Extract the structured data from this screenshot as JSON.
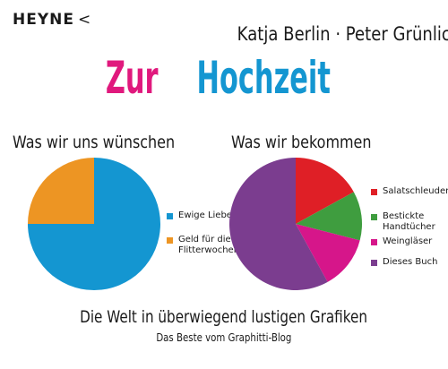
{
  "cover": {
    "publisher": "HEYNE",
    "publisher_mark": "<",
    "authors": "Katja Berlin · Peter Grünlich",
    "title_word1": "Zur",
    "title_word2": "Hochzeit",
    "subtitle": "Die Welt in überwiegend lustigen Grafiken",
    "tagline": "Das Beste vom Graphitti-Blog"
  },
  "colors": {
    "pink": "#e0197d",
    "blue": "#1496d1",
    "orange": "#ed9523",
    "red": "#df1f26",
    "green": "#3f9d3f",
    "magenta": "#d6168a",
    "purple": "#7b3d8f"
  },
  "chart_data": [
    {
      "type": "pie",
      "title": "Was wir uns wünschen",
      "categories": [
        "Ewige Liebe",
        "Geld für die Flitterwochen"
      ],
      "values": [
        75,
        25
      ],
      "colors": [
        "#1496d1",
        "#ed9523"
      ],
      "legend": "right"
    },
    {
      "type": "pie",
      "title": "Was wir bekommen",
      "categories": [
        "Salatschleudern",
        "Bestickte Handtücher",
        "Weingläser",
        "Dieses Buch"
      ],
      "values": [
        17,
        12,
        13,
        58
      ],
      "colors": [
        "#df1f26",
        "#3f9d3f",
        "#d6168a",
        "#7b3d8f"
      ],
      "legend": "right"
    }
  ]
}
